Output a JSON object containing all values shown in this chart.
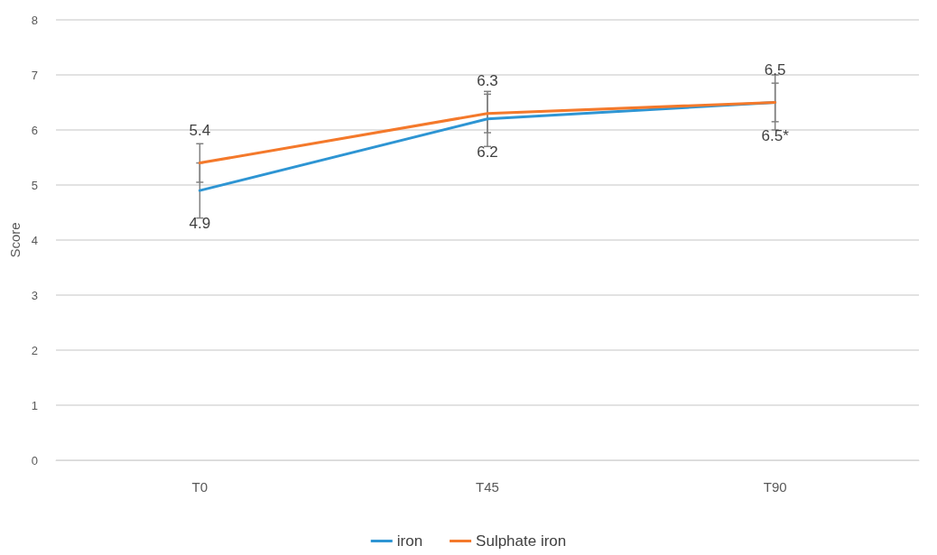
{
  "chart_data": {
    "type": "line",
    "ylabel": "Score",
    "categories": [
      "T0",
      "T45",
      "T90"
    ],
    "series": [
      {
        "name": "iron",
        "color": "#2e95d3",
        "values": [
          4.9,
          6.2,
          6.5
        ],
        "errors": [
          0.5,
          0.5,
          0.5
        ],
        "value_labels": [
          "4.9",
          "6.2",
          "6.5*"
        ]
      },
      {
        "name": "Sulphate iron",
        "color": "#f4792b",
        "values": [
          5.4,
          6.3,
          6.5
        ],
        "errors": [
          0.35,
          0.35,
          0.35
        ],
        "value_labels": [
          "5.4",
          "6.3",
          "6.5"
        ]
      }
    ],
    "ylim": [
      0,
      8
    ],
    "yticks": [
      0,
      1,
      2,
      3,
      4,
      5,
      6,
      7,
      8
    ],
    "grid": "y",
    "legend": "bottom",
    "marker": "none",
    "line_style": "solid"
  }
}
